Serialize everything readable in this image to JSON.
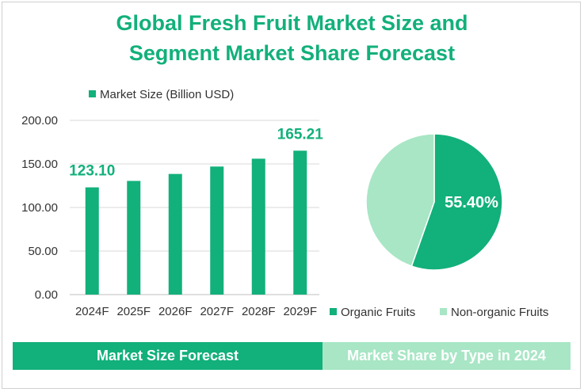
{
  "title_lines": [
    "Global Fresh Fruit Market Size and",
    "Segment Market Share Forecast"
  ],
  "chart_data": [
    {
      "type": "bar",
      "legend": "Market Size (Billion USD)",
      "categories": [
        "2024F",
        "2025F",
        "2026F",
        "2027F",
        "2028F",
        "2029F"
      ],
      "values": [
        123.1,
        130.5,
        138.5,
        147.0,
        156.0,
        165.21
      ],
      "value_labels": [
        "123.10",
        "",
        "",
        "",
        "",
        "165.21"
      ],
      "y_ticks": [
        "0.00",
        "50.00",
        "100.00",
        "150.00",
        "200.00"
      ],
      "ylim": [
        0,
        200
      ],
      "color": "#12b07a"
    },
    {
      "type": "pie",
      "labels": [
        "Organic Fruits",
        "Non-organic Fruits"
      ],
      "values": [
        55.4,
        44.6
      ],
      "slice_label": "55.40%",
      "colors": [
        "#12b07a",
        "#a8e6c5"
      ]
    }
  ],
  "footer": {
    "left": "Market Size Forecast",
    "right": "Market Share by Type in 2024"
  }
}
